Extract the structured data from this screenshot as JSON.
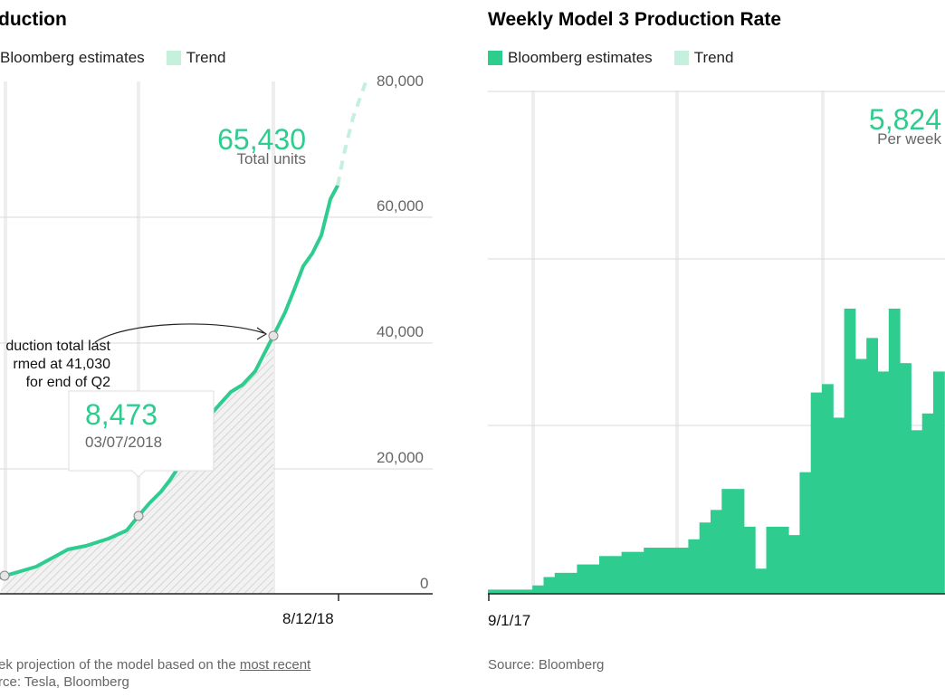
{
  "colors": {
    "series": "#2ecc8f",
    "trend": "#c5f0de",
    "grid": "#d9d9d9",
    "axis": "#222222",
    "text_muted": "#666666"
  },
  "left": {
    "title": "duction",
    "legend": [
      {
        "label": "Bloomberg estimates",
        "color": "#2ecc8f"
      },
      {
        "label": "Trend",
        "color": "#c5f0de"
      }
    ],
    "y_ticks": [
      "80,000",
      "60,000",
      "40,000",
      "20,000",
      "0"
    ],
    "x_tick": "8/12/18",
    "headline_value": "65,430",
    "headline_unit": "Total units",
    "annotation_lines": [
      "duction total last",
      "rmed at 41,030",
      "for end of Q2"
    ],
    "tooltip_value": "8,473",
    "tooltip_date": "03/07/2018",
    "footnote_prefix": "ek projection of the model based on the ",
    "footnote_link": "most recent",
    "source": "rce: Tesla, Bloomberg"
  },
  "right": {
    "title": "Weekly Model 3 Production Rate",
    "legend": [
      {
        "label": "Bloomberg estimates",
        "color": "#2ecc8f"
      },
      {
        "label": "Trend",
        "color": "#c5f0de"
      }
    ],
    "x_tick": "9/1/17",
    "headline_value": "5,824",
    "headline_unit": "Per week",
    "source": "Source: Bloomberg"
  },
  "chart_data": [
    {
      "type": "line",
      "title": "",
      "y_range": [
        0,
        80000
      ],
      "x_tick_labels": [
        "8/12/18"
      ],
      "series": [
        {
          "name": "Bloomberg estimates",
          "points": [
            [
              0,
              2000
            ],
            [
              1,
              2800
            ],
            [
              2,
              4200
            ],
            [
              3,
              5800
            ],
            [
              4,
              7000
            ],
            [
              5,
              8473
            ],
            [
              6,
              12000
            ],
            [
              7,
              18000
            ],
            [
              8,
              25000
            ],
            [
              9,
              31000
            ],
            [
              10,
              38000
            ],
            [
              11,
              41030
            ],
            [
              12,
              48000
            ],
            [
              13,
              56000
            ],
            [
              14,
              65430
            ]
          ]
        },
        {
          "name": "Trend",
          "points": [
            [
              14,
              65430
            ],
            [
              15,
              72000
            ],
            [
              16,
              80000
            ]
          ]
        }
      ],
      "highlighted_points": [
        {
          "label": "03/07/2018",
          "value": 8473
        },
        {
          "label": "end of Q2",
          "value": 41030
        }
      ],
      "grid": true
    },
    {
      "type": "bar",
      "title": "Weekly Model 3 Production Rate",
      "x_tick_labels": [
        "9/1/17"
      ],
      "y_range": [
        0,
        6000
      ],
      "series": [
        {
          "name": "Bloomberg estimates",
          "values": [
            50,
            50,
            50,
            50,
            100,
            200,
            250,
            250,
            350,
            350,
            450,
            450,
            500,
            500,
            550,
            550,
            550,
            550,
            650,
            850,
            1000,
            1250,
            1250,
            800,
            300,
            800,
            800,
            700,
            1450,
            2400,
            2500,
            2100,
            3400,
            2800,
            3050,
            2650,
            3400,
            2750,
            1950,
            2150,
            2650
          ]
        }
      ],
      "grid": true
    }
  ]
}
